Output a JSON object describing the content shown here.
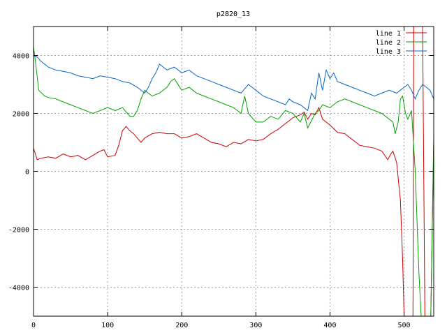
{
  "chart_data": {
    "type": "line",
    "title": "p2820_13",
    "xlabel": "",
    "ylabel": "",
    "xlim": [
      0,
      540
    ],
    "ylim": [
      -5000,
      5000
    ],
    "x_ticks": [
      0,
      100,
      200,
      300,
      400,
      500
    ],
    "y_ticks": [
      -4000,
      -2000,
      0,
      2000,
      4000
    ],
    "x_tick_labels": [
      "0",
      "100",
      "200",
      "300",
      "400",
      "500"
    ],
    "y_tick_labels": [
      "-4000",
      "-2000",
      "0",
      "2000",
      "4000"
    ],
    "grid": true,
    "legend_position": "top-right",
    "series": [
      {
        "name": "line 1",
        "color": "#cc0000",
        "points": [
          [
            0,
            800
          ],
          [
            5,
            400
          ],
          [
            10,
            450
          ],
          [
            20,
            500
          ],
          [
            30,
            450
          ],
          [
            40,
            600
          ],
          [
            50,
            500
          ],
          [
            60,
            550
          ],
          [
            70,
            400
          ],
          [
            80,
            550
          ],
          [
            90,
            700
          ],
          [
            95,
            750
          ],
          [
            100,
            500
          ],
          [
            110,
            550
          ],
          [
            115,
            900
          ],
          [
            120,
            1400
          ],
          [
            125,
            1550
          ],
          [
            130,
            1400
          ],
          [
            135,
            1300
          ],
          [
            140,
            1150
          ],
          [
            145,
            1000
          ],
          [
            150,
            1150
          ],
          [
            160,
            1300
          ],
          [
            170,
            1350
          ],
          [
            180,
            1300
          ],
          [
            190,
            1300
          ],
          [
            200,
            1150
          ],
          [
            210,
            1200
          ],
          [
            220,
            1300
          ],
          [
            230,
            1150
          ],
          [
            240,
            1000
          ],
          [
            250,
            950
          ],
          [
            260,
            850
          ],
          [
            270,
            1000
          ],
          [
            280,
            950
          ],
          [
            290,
            1100
          ],
          [
            300,
            1050
          ],
          [
            310,
            1100
          ],
          [
            320,
            1300
          ],
          [
            330,
            1450
          ],
          [
            340,
            1650
          ],
          [
            350,
            1850
          ],
          [
            360,
            1950
          ],
          [
            365,
            2050
          ],
          [
            370,
            1800
          ],
          [
            375,
            2000
          ],
          [
            380,
            1950
          ],
          [
            385,
            2200
          ],
          [
            390,
            1800
          ],
          [
            400,
            1600
          ],
          [
            410,
            1350
          ],
          [
            420,
            1300
          ],
          [
            430,
            1100
          ],
          [
            440,
            900
          ],
          [
            450,
            850
          ],
          [
            460,
            800
          ],
          [
            470,
            700
          ],
          [
            478,
            400
          ],
          [
            482,
            600
          ],
          [
            485,
            700
          ],
          [
            490,
            300
          ],
          [
            495,
            -1000
          ],
          [
            498,
            -3000
          ],
          [
            500,
            -5000
          ],
          [
            512,
            -5000
          ],
          [
            513,
            5000
          ],
          [
            525,
            5000
          ],
          [
            528,
            -5000
          ],
          [
            536,
            -5000
          ],
          [
            540,
            1200
          ]
        ]
      },
      {
        "name": "line 2",
        "color": "#00a000",
        "points": [
          [
            0,
            4300
          ],
          [
            3,
            3700
          ],
          [
            7,
            2800
          ],
          [
            15,
            2600
          ],
          [
            20,
            2550
          ],
          [
            30,
            2500
          ],
          [
            40,
            2400
          ],
          [
            50,
            2300
          ],
          [
            60,
            2200
          ],
          [
            70,
            2100
          ],
          [
            80,
            2000
          ],
          [
            90,
            2100
          ],
          [
            100,
            2200
          ],
          [
            110,
            2100
          ],
          [
            120,
            2200
          ],
          [
            130,
            1900
          ],
          [
            135,
            1900
          ],
          [
            140,
            2100
          ],
          [
            145,
            2500
          ],
          [
            150,
            2800
          ],
          [
            160,
            2600
          ],
          [
            170,
            2700
          ],
          [
            180,
            2900
          ],
          [
            185,
            3100
          ],
          [
            190,
            3200
          ],
          [
            200,
            2800
          ],
          [
            210,
            2900
          ],
          [
            220,
            2700
          ],
          [
            230,
            2600
          ],
          [
            240,
            2500
          ],
          [
            250,
            2400
          ],
          [
            260,
            2300
          ],
          [
            270,
            2200
          ],
          [
            280,
            2000
          ],
          [
            285,
            2600
          ],
          [
            290,
            2000
          ],
          [
            300,
            1700
          ],
          [
            310,
            1700
          ],
          [
            320,
            1900
          ],
          [
            330,
            1800
          ],
          [
            340,
            2100
          ],
          [
            350,
            2000
          ],
          [
            360,
            1700
          ],
          [
            365,
            2000
          ],
          [
            370,
            1500
          ],
          [
            380,
            2000
          ],
          [
            385,
            2100
          ],
          [
            390,
            2300
          ],
          [
            400,
            2200
          ],
          [
            410,
            2400
          ],
          [
            420,
            2500
          ],
          [
            430,
            2400
          ],
          [
            440,
            2300
          ],
          [
            450,
            2200
          ],
          [
            460,
            2100
          ],
          [
            470,
            2000
          ],
          [
            480,
            1800
          ],
          [
            485,
            1700
          ],
          [
            488,
            1300
          ],
          [
            492,
            1700
          ],
          [
            495,
            2500
          ],
          [
            498,
            2600
          ],
          [
            502,
            2000
          ],
          [
            505,
            1800
          ],
          [
            510,
            2100
          ],
          [
            515,
            0
          ],
          [
            520,
            -3500
          ],
          [
            523,
            -5000
          ],
          [
            536,
            -5000
          ],
          [
            540,
            1000
          ]
        ]
      },
      {
        "name": "line 3",
        "color": "#0066cc",
        "points": [
          [
            0,
            4000
          ],
          [
            5,
            3950
          ],
          [
            10,
            3800
          ],
          [
            20,
            3600
          ],
          [
            30,
            3500
          ],
          [
            40,
            3450
          ],
          [
            50,
            3400
          ],
          [
            60,
            3300
          ],
          [
            70,
            3250
          ],
          [
            80,
            3200
          ],
          [
            90,
            3300
          ],
          [
            100,
            3250
          ],
          [
            110,
            3200
          ],
          [
            120,
            3100
          ],
          [
            130,
            3050
          ],
          [
            140,
            2900
          ],
          [
            150,
            2700
          ],
          [
            155,
            2900
          ],
          [
            160,
            3200
          ],
          [
            165,
            3400
          ],
          [
            170,
            3700
          ],
          [
            180,
            3500
          ],
          [
            190,
            3600
          ],
          [
            200,
            3400
          ],
          [
            210,
            3500
          ],
          [
            220,
            3300
          ],
          [
            230,
            3200
          ],
          [
            240,
            3100
          ],
          [
            250,
            3000
          ],
          [
            260,
            2900
          ],
          [
            270,
            2800
          ],
          [
            280,
            2700
          ],
          [
            290,
            3000
          ],
          [
            300,
            2800
          ],
          [
            310,
            2600
          ],
          [
            320,
            2500
          ],
          [
            330,
            2400
          ],
          [
            340,
            2300
          ],
          [
            345,
            2500
          ],
          [
            350,
            2400
          ],
          [
            360,
            2300
          ],
          [
            370,
            2100
          ],
          [
            375,
            2700
          ],
          [
            380,
            2500
          ],
          [
            385,
            3400
          ],
          [
            390,
            2800
          ],
          [
            395,
            3500
          ],
          [
            400,
            3200
          ],
          [
            405,
            3400
          ],
          [
            410,
            3100
          ],
          [
            420,
            3000
          ],
          [
            430,
            2900
          ],
          [
            440,
            2800
          ],
          [
            450,
            2700
          ],
          [
            460,
            2600
          ],
          [
            470,
            2700
          ],
          [
            480,
            2800
          ],
          [
            490,
            2700
          ],
          [
            500,
            2900
          ],
          [
            505,
            3000
          ],
          [
            510,
            2800
          ],
          [
            515,
            2500
          ],
          [
            520,
            2800
          ],
          [
            525,
            3000
          ],
          [
            530,
            2900
          ],
          [
            535,
            2800
          ],
          [
            540,
            2500
          ]
        ]
      }
    ]
  }
}
